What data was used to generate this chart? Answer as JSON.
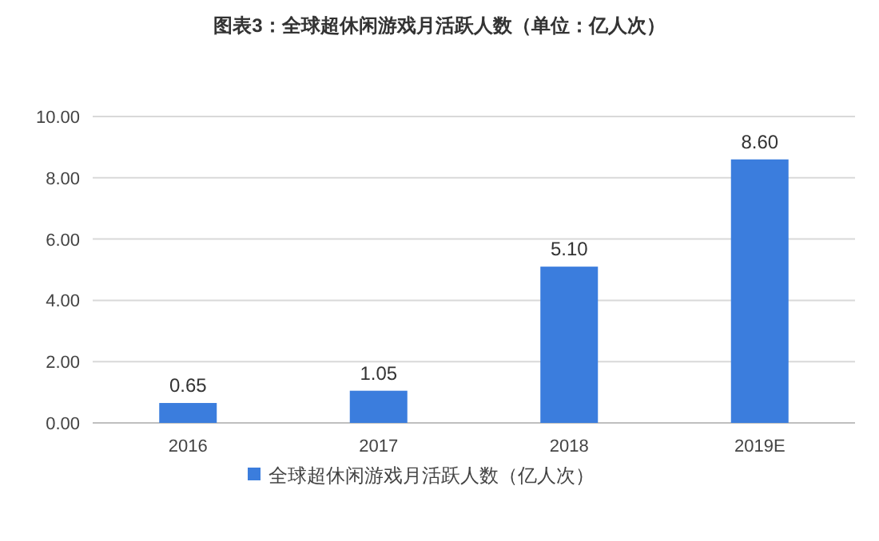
{
  "chart_data": {
    "type": "bar",
    "title": "图表3：全球超休闲游戏月活跃人数（单位：亿人次）",
    "categories": [
      "2016",
      "2017",
      "2018",
      "2019E"
    ],
    "series": [
      {
        "name": "全球超休闲游戏月活跃人数（亿人次）",
        "color": "#3b7ddd",
        "values": [
          0.65,
          1.05,
          5.1,
          8.6
        ],
        "value_labels": [
          "0.65",
          "1.05",
          "5.10",
          "8.60"
        ]
      }
    ],
    "ylim": [
      0,
      10
    ],
    "yticks": [
      {
        "value": 0,
        "label": "0.00"
      },
      {
        "value": 2,
        "label": "2.00"
      },
      {
        "value": 4,
        "label": "4.00"
      },
      {
        "value": 6,
        "label": "6.00"
      },
      {
        "value": 8,
        "label": "8.00"
      },
      {
        "value": 10,
        "label": "10.00"
      }
    ],
    "grid": "y",
    "legend": "bottom"
  }
}
